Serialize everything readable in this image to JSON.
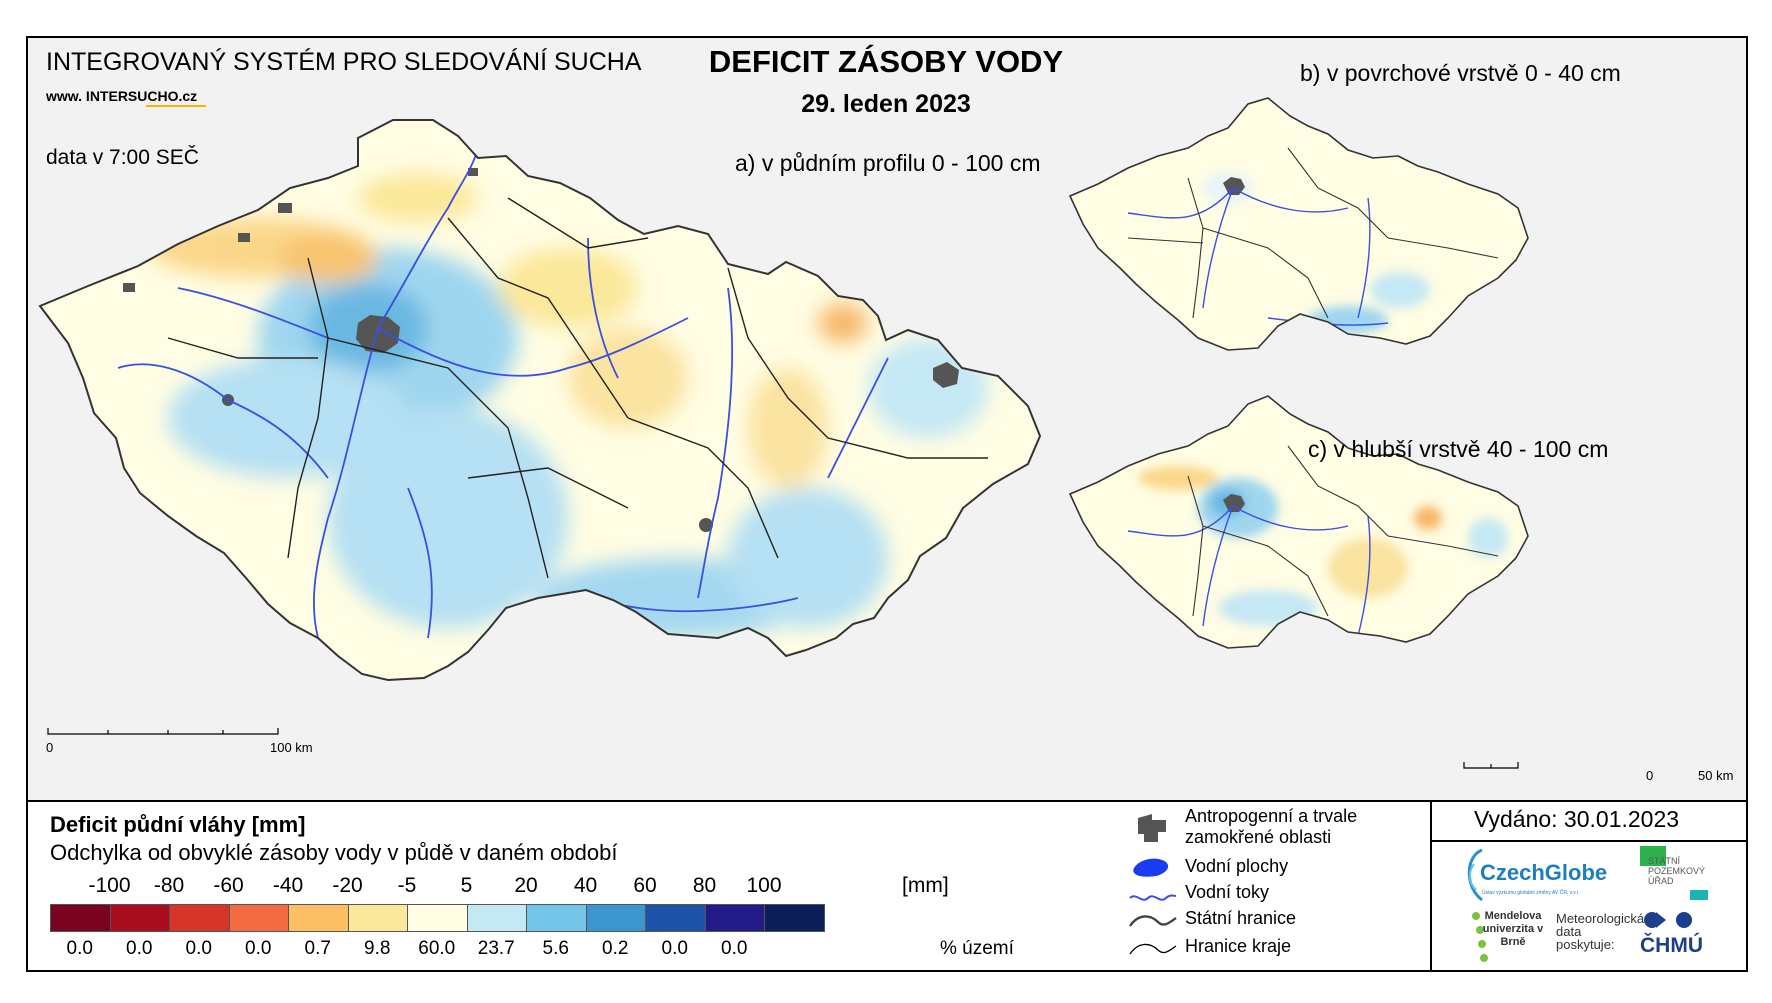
{
  "header": {
    "system_title": "INTEGROVANÝ SYSTÉM PRO SLEDOVÁNÍ SUCHA",
    "website": "www. INTERSUCHO.cz",
    "data_time": "data v 7:00 SEČ",
    "main_title": "DEFICIT ZÁSOBY VODY",
    "date": "29. leden 2023"
  },
  "maps": {
    "a_label": "a) v půdním profilu 0 - 100 cm",
    "b_label": "b) v povrchové vrstvě 0 - 40 cm",
    "c_label": "c) v hlubší vrstvě 40 - 100 cm",
    "scale_a": {
      "start": "0",
      "end": "100 km"
    },
    "scale_c": {
      "start": "0",
      "end": "50 km"
    }
  },
  "legend": {
    "title": "Deficit půdní vláhy  [mm]",
    "subtitle": "Odchylka od obvyklé zásoby vody v půdě v daném období",
    "unit": "[mm]",
    "pct_label": "% území",
    "breaks": [
      "-100",
      "-80",
      "-60",
      "-40",
      "-20",
      "-5",
      "5",
      "20",
      "40",
      "60",
      "80",
      "100"
    ],
    "colors": [
      "#7a0420",
      "#a80d1f",
      "#d6352a",
      "#f26b43",
      "#fcbf63",
      "#fbe89a",
      "#fffde3",
      "#c5e8f5",
      "#74c6e8",
      "#3d95d0",
      "#1c52a8",
      "#221b87",
      "#0b1e57"
    ],
    "percentages": [
      "0.0",
      "0.0",
      "0.0",
      "0.0",
      "0.7",
      "9.8",
      "60.0",
      "23.7",
      "5.6",
      "0.2",
      "0.0",
      "0.0"
    ]
  },
  "symbols": {
    "anthropogenic": "Antropogenní a trvale zamokřené oblasti",
    "water_areas": "Vodní plochy",
    "rivers": "Vodní toky",
    "state_border": "Státní hranice",
    "region_border": "Hranice kraje"
  },
  "info": {
    "issued": "Vydáno: 30.01.2023",
    "czechglobe": "CzechGlobe",
    "czechglobe_sub": "Ústav výzkumu globální změny AV ČR, v.v.i.",
    "spu": "STÁTNÍ POZEMKOVÝ ÚŘAD",
    "mendelu": "Mendelova univerzita v Brně",
    "meteo_note": "Meteorologická data poskytuje:",
    "chmu": "ČHMÚ"
  }
}
